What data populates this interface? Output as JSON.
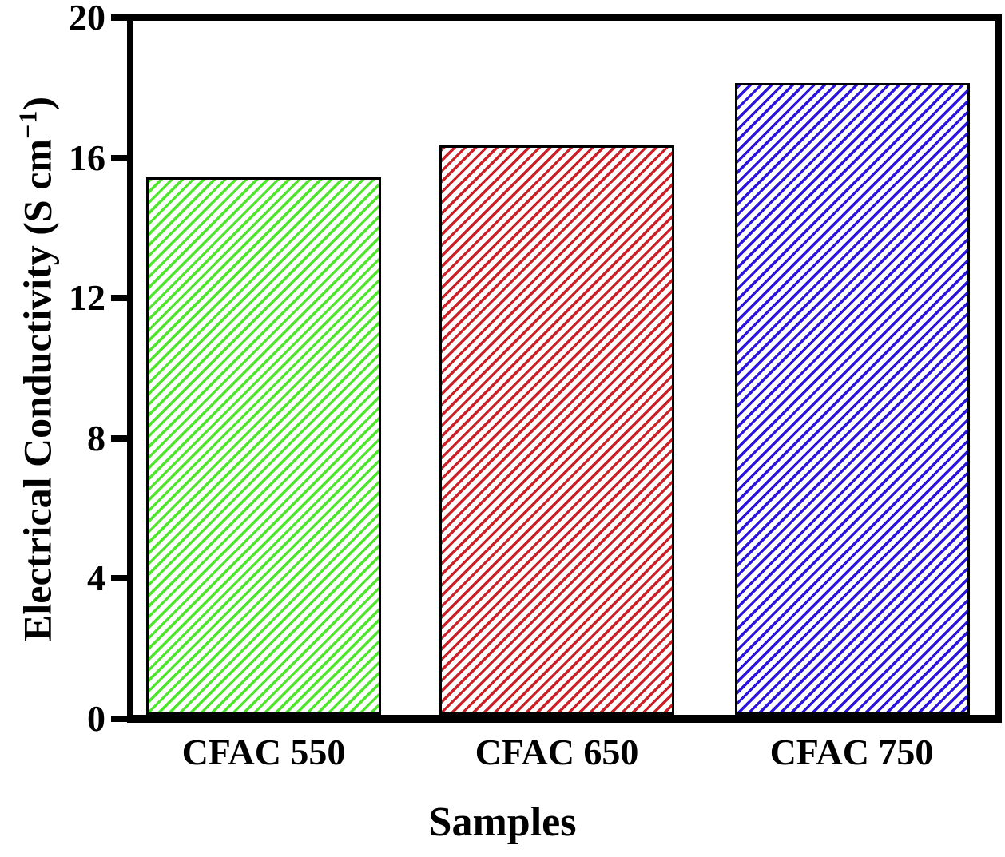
{
  "chart_data": {
    "type": "bar",
    "title": "",
    "xlabel": "Samples",
    "ylabel": "Electrical Conductivity (S cm⁻¹)",
    "ylabel_parts": {
      "prefix": "Electrical Conductivity (S cm",
      "sup": "−1",
      "suffix": ")"
    },
    "categories": [
      "CFAC 550",
      "CFAC 650",
      "CFAC 750"
    ],
    "values": [
      15.5,
      16.4,
      18.2
    ],
    "bar_colors": [
      "#4de62b",
      "#cc1f26",
      "#2b14dd"
    ],
    "bar_edge_color": "#000000",
    "hatch": "/",
    "yticks": [
      0,
      4,
      8,
      12,
      16,
      20
    ],
    "ylim": [
      0,
      20
    ],
    "grid": false,
    "legend": null,
    "frame": true,
    "background_color": "#ffffff",
    "text_color": "#000000"
  }
}
